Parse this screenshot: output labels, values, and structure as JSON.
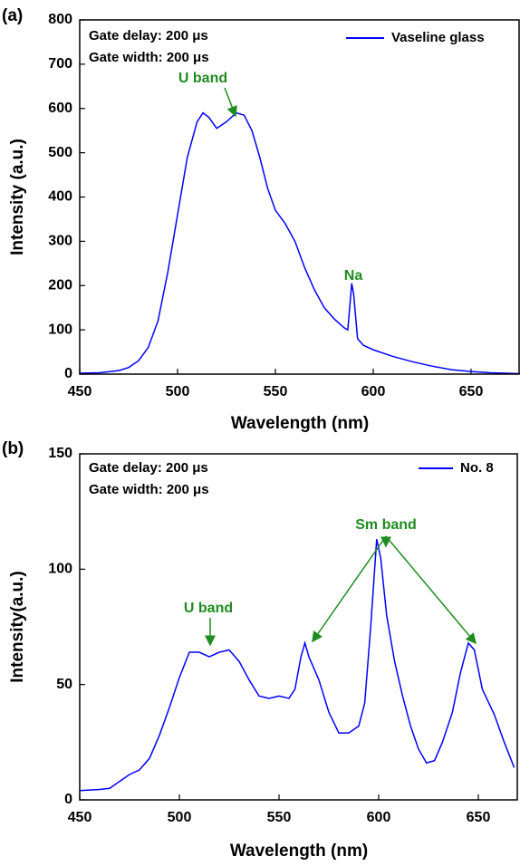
{
  "chart_data": [
    {
      "type": "line",
      "panel_label": "(a)",
      "xlabel": "Wavelength (nm)",
      "ylabel": "Intensity (a.u.)",
      "xlim": [
        450,
        675
      ],
      "ylim": [
        0,
        800
      ],
      "xticks": [
        450,
        500,
        550,
        600,
        650
      ],
      "yticks": [
        0,
        100,
        200,
        300,
        400,
        500,
        600,
        700,
        800
      ],
      "legend": "upper right",
      "annotations": [
        "Gate delay: 200 μs",
        "Gate width: 200 μs",
        "U band",
        "Na"
      ],
      "series": [
        {
          "name": "Vaseline glass",
          "color": "#0000ff",
          "x": [
            450,
            460,
            470,
            475,
            480,
            485,
            490,
            495,
            500,
            505,
            510,
            513,
            516,
            520,
            525,
            530,
            534,
            538,
            542,
            546,
            550,
            555,
            560,
            565,
            570,
            575,
            580,
            585,
            587,
            589,
            590,
            592,
            595,
            600,
            610,
            620,
            630,
            640,
            650,
            660,
            675
          ],
          "values": [
            2,
            3,
            8,
            15,
            30,
            60,
            120,
            230,
            360,
            490,
            570,
            590,
            580,
            555,
            570,
            590,
            585,
            550,
            490,
            420,
            370,
            340,
            300,
            240,
            190,
            150,
            125,
            105,
            100,
            205,
            180,
            80,
            65,
            55,
            40,
            28,
            18,
            10,
            6,
            3,
            1
          ]
        }
      ]
    },
    {
      "type": "line",
      "panel_label": "(b)",
      "xlabel": "Wavelength (nm)",
      "ylabel": "Intensity(a.u.)",
      "xlim": [
        450,
        670
      ],
      "ylim": [
        0,
        150
      ],
      "xticks": [
        450,
        500,
        550,
        600,
        650
      ],
      "yticks": [
        0,
        50,
        100,
        150
      ],
      "legend": "upper right",
      "annotations": [
        "Gate delay: 200 μs",
        "Gate width: 200 μs",
        "U band",
        "Sm band"
      ],
      "series": [
        {
          "name": "No. 8",
          "color": "#0000ff",
          "x": [
            450,
            460,
            465,
            470,
            475,
            480,
            485,
            490,
            495,
            500,
            505,
            510,
            515,
            520,
            525,
            530,
            535,
            540,
            545,
            550,
            555,
            558,
            561,
            563,
            565,
            570,
            575,
            580,
            585,
            590,
            593,
            596,
            599,
            601,
            604,
            608,
            612,
            616,
            620,
            624,
            628,
            632,
            637,
            641,
            645,
            648,
            652,
            658,
            663,
            668
          ],
          "values": [
            4,
            4.5,
            5,
            8,
            11,
            13,
            18,
            28,
            40,
            53,
            64,
            64,
            62,
            64,
            65,
            60,
            52,
            45,
            44,
            45,
            44,
            48,
            62,
            68,
            62,
            52,
            38,
            29,
            29,
            32,
            42,
            75,
            113,
            105,
            80,
            60,
            45,
            32,
            22,
            16,
            17,
            25,
            38,
            55,
            68,
            65,
            48,
            37,
            25,
            14
          ]
        }
      ]
    }
  ]
}
